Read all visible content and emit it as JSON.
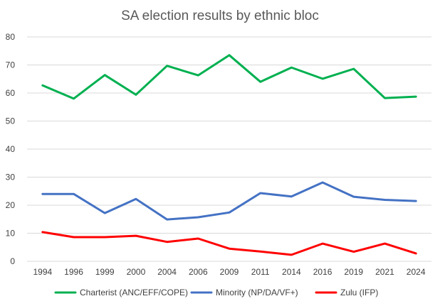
{
  "chart_data": {
    "type": "line",
    "title": "SA election results by ethnic bloc",
    "xlabel": "",
    "ylabel": "",
    "categories": [
      "1994",
      "1996",
      "1999",
      "2000",
      "2004",
      "2006",
      "2009",
      "2011",
      "2014",
      "2016",
      "2019",
      "2021",
      "2024"
    ],
    "ylim": [
      0,
      80
    ],
    "yticks": [
      0,
      10,
      20,
      30,
      40,
      50,
      60,
      70,
      80
    ],
    "grid": true,
    "legend_position": "bottom",
    "series": [
      {
        "name": "Charterist (ANC/EFF/COPE)",
        "color": "#00b050",
        "values": [
          62.7,
          58.0,
          66.4,
          59.4,
          69.7,
          66.3,
          73.5,
          64.0,
          69.1,
          65.1,
          68.6,
          58.2,
          58.7
        ]
      },
      {
        "name": "Minority (NP/DA/VF+)",
        "color": "#4472c4",
        "values": [
          24.0,
          24.0,
          17.2,
          22.2,
          14.9,
          15.7,
          17.4,
          24.3,
          23.1,
          28.1,
          23.0,
          21.9,
          21.5
        ]
      },
      {
        "name": "Zulu (IFP)",
        "color": "#ff0000",
        "values": [
          10.4,
          8.6,
          8.6,
          9.1,
          6.9,
          8.1,
          4.5,
          3.5,
          2.3,
          6.3,
          3.4,
          6.3,
          2.8
        ]
      }
    ]
  }
}
